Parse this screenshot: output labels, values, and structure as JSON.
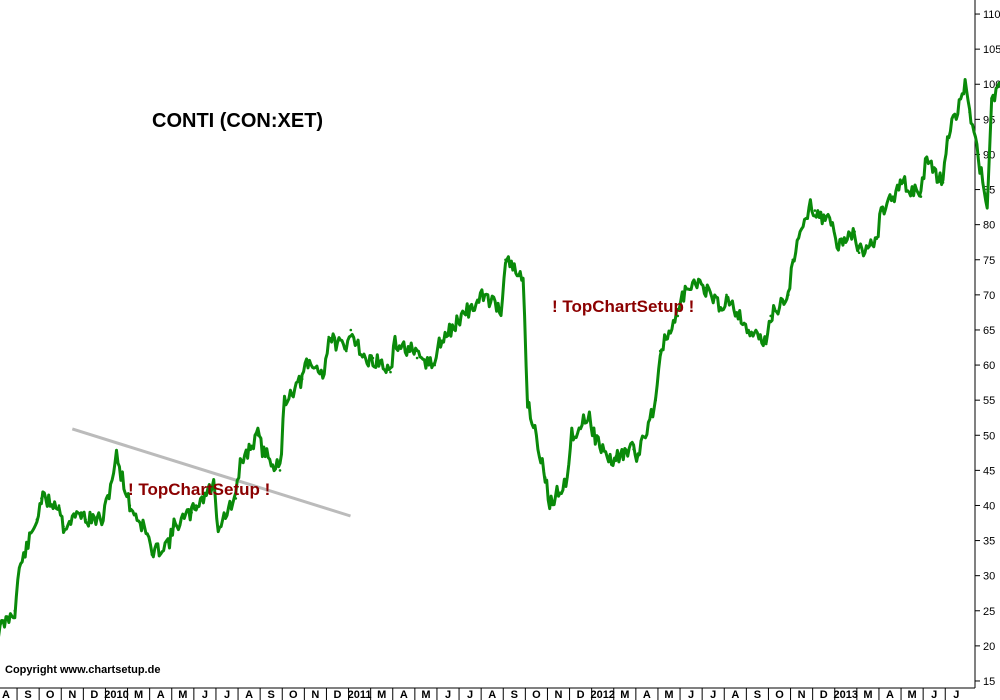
{
  "chart_data": {
    "type": "line",
    "title": "CONTI  (CON:XET)",
    "watermarks": [
      "! TopChartSetup !",
      "! TopChartSetup !"
    ],
    "copyright": "Copyright www.chartsetup.de",
    "ylim": [
      14,
      112
    ],
    "yticks": [
      15,
      20,
      25,
      30,
      35,
      40,
      45,
      50,
      55,
      60,
      65,
      70,
      75,
      80,
      85,
      90,
      95,
      100,
      105,
      110
    ],
    "month_labels": [
      "A",
      "S",
      "O",
      "N",
      "D",
      "2010",
      "M",
      "A",
      "M",
      "J",
      "J",
      "A",
      "S",
      "O",
      "N",
      "D",
      "2011",
      "M",
      "A",
      "M",
      "J",
      "J",
      "A",
      "S",
      "O",
      "N",
      "D",
      "2012",
      "M",
      "A",
      "M",
      "J",
      "J",
      "A",
      "S",
      "O",
      "N",
      "D",
      "2013",
      "M",
      "A",
      "M",
      "J",
      "J"
    ],
    "line_color": "#0a8a0a",
    "trendline_color": "#bbbbbb",
    "trendline": {
      "start": [
        "2009-11",
        50.9
      ],
      "end": [
        "2010-11",
        38.5
      ]
    },
    "series": [
      {
        "x": [
          "2009-08",
          "2009-08",
          "2009-09",
          "2009-09",
          "2009-10",
          "2009-10",
          "2009-11",
          "2009-11",
          "2009-12",
          "2009-12",
          "2010-01",
          "2010-02",
          "2010-02",
          "2010-03",
          "2010-03",
          "2010-04",
          "2010-04",
          "2010-05",
          "2010-05",
          "2010-06",
          "2010-06",
          "2010-07",
          "2010-07",
          "2010-08",
          "2010-08",
          "2010-09",
          "2010-09",
          "2010-10",
          "2010-10",
          "2010-11",
          "2010-11",
          "2010-12",
          "2010-12",
          "2011-01",
          "2011-01",
          "2011-02",
          "2011-02",
          "2011-03",
          "2011-03",
          "2011-04",
          "2011-04",
          "2011-05",
          "2011-05",
          "2011-06",
          "2011-06",
          "2011-07",
          "2011-07",
          "2011-08",
          "2011-08",
          "2011-09",
          "2011-09",
          "2011-10",
          "2011-10",
          "2011-11",
          "2011-11",
          "2011-12",
          "2011-12",
          "2012-01",
          "2012-01",
          "2012-02",
          "2012-02",
          "2012-03",
          "2012-03",
          "2012-04",
          "2012-04",
          "2012-05",
          "2012-05",
          "2012-06",
          "2012-06",
          "2012-07",
          "2012-07",
          "2012-08",
          "2012-08",
          "2012-09",
          "2012-09",
          "2012-10",
          "2012-10",
          "2012-11",
          "2012-11",
          "2012-12",
          "2012-12",
          "2013-01",
          "2013-01",
          "2013-02",
          "2013-02",
          "2013-03",
          "2013-03",
          "2013-04",
          "2013-04",
          "2013-05",
          "2013-05",
          "2013-06",
          "2013-06",
          "2013-07"
        ],
        "values": [
          22,
          25,
          31,
          38,
          41,
          40,
          37,
          39,
          38,
          38,
          47,
          40,
          36,
          33,
          35,
          37,
          39,
          40,
          43,
          37,
          41,
          46,
          50,
          48,
          45,
          55,
          58,
          60,
          59,
          64,
          62,
          65,
          60,
          61,
          59,
          63,
          62,
          61,
          60,
          63,
          66,
          67,
          69,
          70,
          68,
          75,
          72,
          55,
          44,
          40,
          44,
          50,
          53,
          50,
          46,
          47,
          48,
          47,
          55,
          62,
          67,
          70,
          72,
          71,
          68,
          70,
          66,
          65,
          63,
          67,
          70,
          75,
          83,
          82,
          80,
          77,
          79,
          76,
          78,
          82,
          85,
          86,
          84,
          89,
          86,
          92,
          100,
          96,
          83,
          98,
          101,
          99,
          96,
          103
        ]
      }
    ]
  }
}
